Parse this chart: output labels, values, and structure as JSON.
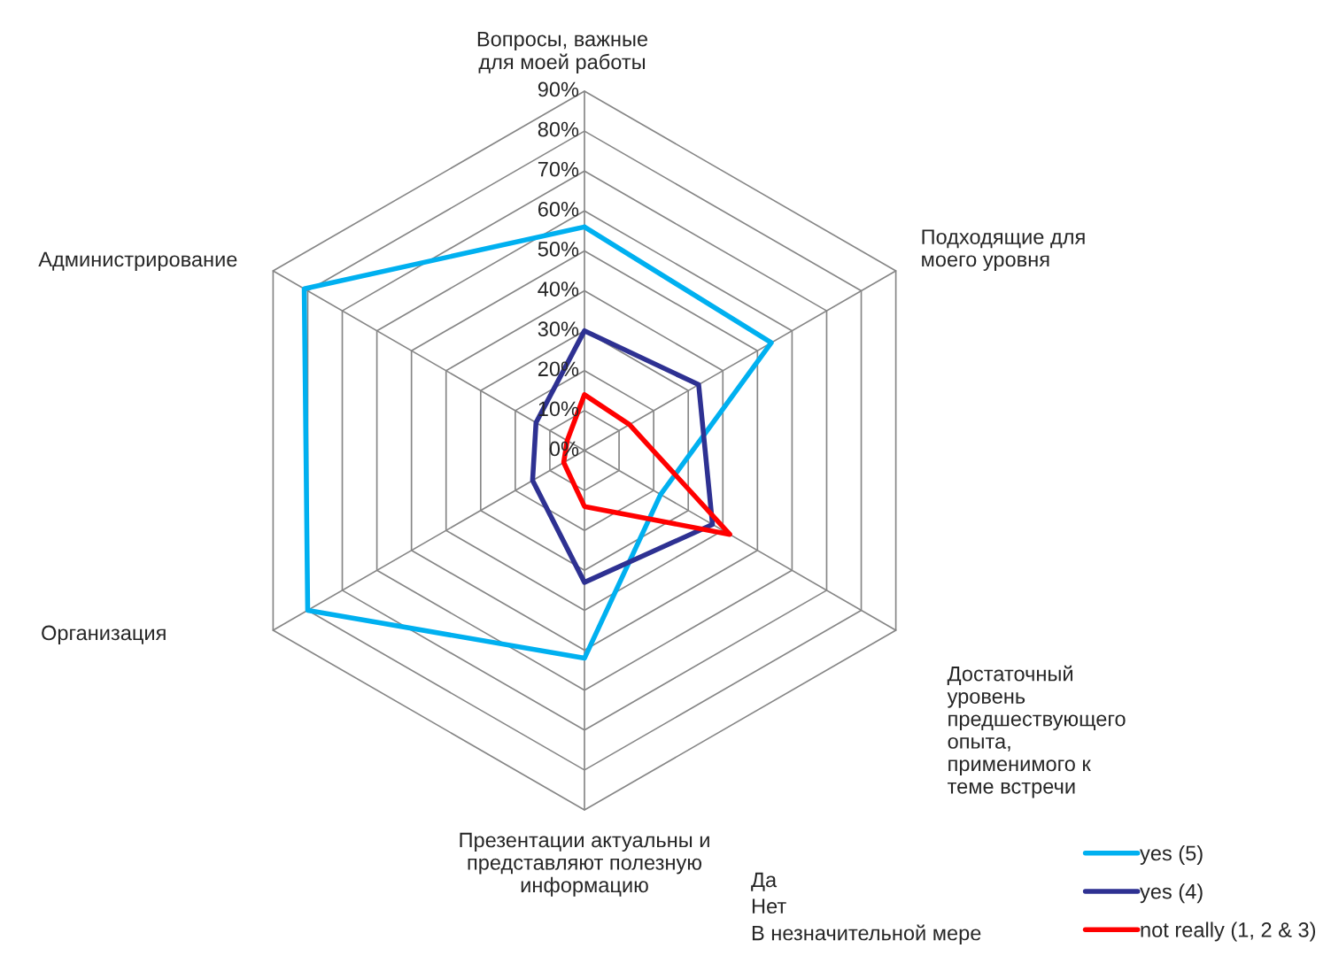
{
  "chart_data": {
    "type": "radar",
    "categories": [
      "Вопросы, важные\nдля моей работы",
      "Подходящие для\nмоего уровня",
      "Достаточный\nуровень\nпредшествующего\nопыта,\nприменимого к\nтеме встречи",
      "Презентации актуальны и\nпредставляют полезную\nинформацию",
      "Организация",
      "Администрирование"
    ],
    "series": [
      {
        "name": "yes (5)",
        "color": "#00b0f0",
        "values": [
          0.56,
          0.54,
          0.22,
          0.52,
          0.8,
          0.81
        ]
      },
      {
        "name": "yes (4)",
        "color": "#2e3192",
        "values": [
          0.3,
          0.33,
          0.37,
          0.33,
          0.15,
          0.14
        ]
      },
      {
        "name": "not really (1, 2 & 3)",
        "color": "#ff0000",
        "values": [
          0.14,
          0.13,
          0.42,
          0.14,
          0.06,
          0.05
        ]
      }
    ],
    "ylim": [
      0,
      0.9
    ],
    "yticks": [
      {
        "value": 0,
        "label": "0%"
      },
      {
        "value": 0.1,
        "label": "10%"
      },
      {
        "value": 0.2,
        "label": "20%"
      },
      {
        "value": 0.3,
        "label": "30%"
      },
      {
        "value": 0.4,
        "label": "40%"
      },
      {
        "value": 0.5,
        "label": "50%"
      },
      {
        "value": 0.6,
        "label": "60%"
      },
      {
        "value": 0.7,
        "label": "70%"
      },
      {
        "value": 0.8,
        "label": "80%"
      },
      {
        "value": 0.9,
        "label": "90%"
      }
    ],
    "annotations": [
      "Да\nНет\nВ незначительной мере"
    ],
    "legend": "bottom right"
  }
}
